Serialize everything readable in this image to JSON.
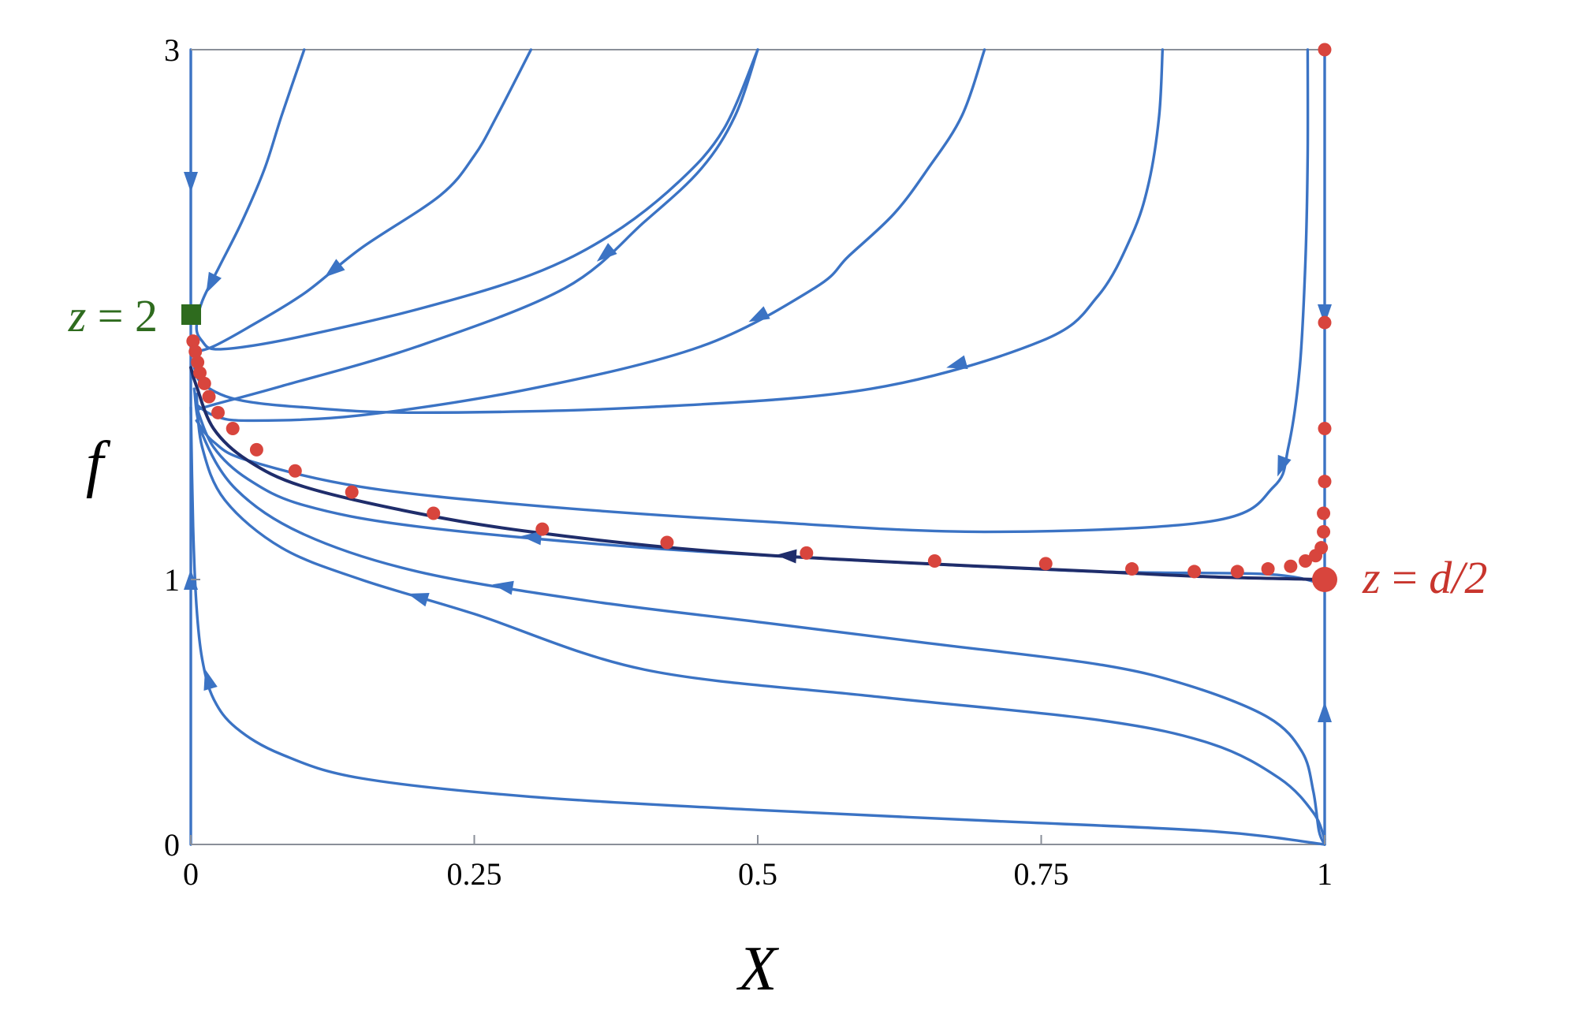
{
  "chart_data": {
    "type": "line",
    "title": "",
    "xlabel": "X",
    "ylabel": "f",
    "xlim": [
      0,
      1
    ],
    "ylim": [
      0,
      3
    ],
    "x_ticks": [
      {
        "value": 0,
        "label": "0"
      },
      {
        "value": 0.25,
        "label": "0.25"
      },
      {
        "value": 0.5,
        "label": "0.5"
      },
      {
        "value": 0.75,
        "label": "0.75"
      },
      {
        "value": 1,
        "label": "1"
      }
    ],
    "y_ticks": [
      {
        "value": 0,
        "label": "0"
      },
      {
        "value": 1,
        "label": "1"
      },
      {
        "value": 3,
        "label": "3"
      }
    ],
    "grid": false,
    "colors": {
      "flow": "#3b73c4",
      "separatrix": "#1f2d6b",
      "points": "#d8453d",
      "square_marker": "#2e6b1e",
      "frame": "#8a8f99"
    },
    "fixed_points": [
      {
        "x": 0,
        "y": 2,
        "marker": "square",
        "label_lhs": "z",
        "label_rhs": "2",
        "color": "#2e6b1e"
      },
      {
        "x": 1,
        "y": 1,
        "marker": "circle",
        "label_lhs": "z",
        "label_rhs": "d/2",
        "color": "#d8453d"
      }
    ],
    "series": [
      {
        "style": "flow",
        "points": [
          [
            0.1,
            3.0
          ],
          [
            0.08,
            2.75
          ],
          [
            0.065,
            2.55
          ],
          [
            0.045,
            2.35
          ],
          [
            0.025,
            2.18
          ],
          [
            0.01,
            2.05
          ],
          [
            0.005,
            1.95
          ],
          [
            0.01,
            1.9
          ],
          [
            0.02,
            1.87
          ],
          [
            0.05,
            1.88
          ],
          [
            0.1,
            1.92
          ],
          [
            0.2,
            2.02
          ],
          [
            0.3,
            2.15
          ],
          [
            0.37,
            2.3
          ],
          [
            0.43,
            2.5
          ],
          [
            0.47,
            2.7
          ],
          [
            0.5,
            3.0
          ]
        ],
        "arrow_at": 4,
        "arrow_dir": "forward"
      },
      {
        "style": "flow",
        "points": [
          [
            0.3,
            3.0
          ],
          [
            0.27,
            2.75
          ],
          [
            0.25,
            2.6
          ],
          [
            0.22,
            2.45
          ],
          [
            0.15,
            2.25
          ],
          [
            0.1,
            2.08
          ],
          [
            0.05,
            1.95
          ],
          [
            0.02,
            1.88
          ],
          [
            0.005,
            1.86
          ]
        ],
        "arrow_at": 4,
        "arrow_dir": "forward"
      },
      {
        "style": "flow",
        "points": [
          [
            0.5,
            3.0
          ],
          [
            0.48,
            2.75
          ],
          [
            0.45,
            2.55
          ],
          [
            0.4,
            2.35
          ],
          [
            0.33,
            2.1
          ],
          [
            0.2,
            1.88
          ],
          [
            0.08,
            1.73
          ],
          [
            0.02,
            1.66
          ],
          [
            0.005,
            1.64
          ]
        ],
        "arrow_at": 3,
        "arrow_dir": "forward"
      },
      {
        "style": "flow",
        "points": [
          [
            0.7,
            3.0
          ],
          [
            0.68,
            2.75
          ],
          [
            0.65,
            2.55
          ],
          [
            0.62,
            2.38
          ],
          [
            0.58,
            2.22
          ],
          [
            0.55,
            2.1
          ],
          [
            0.45,
            1.88
          ],
          [
            0.3,
            1.72
          ],
          [
            0.15,
            1.62
          ],
          [
            0.05,
            1.6
          ],
          [
            0.02,
            1.62
          ],
          [
            0.005,
            1.66
          ]
        ],
        "arrow_at": 5,
        "arrow_dir": "forward"
      },
      {
        "style": "flow",
        "points": [
          [
            0.857,
            3.0
          ],
          [
            0.854,
            2.75
          ],
          [
            0.845,
            2.5
          ],
          [
            0.83,
            2.3
          ],
          [
            0.8,
            2.07
          ],
          [
            0.75,
            1.9
          ],
          [
            0.6,
            1.72
          ],
          [
            0.4,
            1.65
          ],
          [
            0.2,
            1.63
          ],
          [
            0.1,
            1.65
          ],
          [
            0.04,
            1.68
          ],
          [
            0.01,
            1.74
          ],
          [
            0.003,
            1.8
          ]
        ],
        "arrow_at": 5,
        "arrow_dir": "forward"
      },
      {
        "style": "flow",
        "points": [
          [
            0.985,
            3.0
          ],
          [
            0.985,
            2.6
          ],
          [
            0.983,
            2.2
          ],
          [
            0.978,
            1.8
          ],
          [
            0.968,
            1.5
          ],
          [
            0.955,
            1.35
          ],
          [
            0.9,
            1.22
          ],
          [
            0.7,
            1.18
          ],
          [
            0.5,
            1.22
          ],
          [
            0.3,
            1.28
          ],
          [
            0.15,
            1.35
          ],
          [
            0.05,
            1.45
          ],
          [
            0.02,
            1.52
          ],
          [
            0.005,
            1.6
          ]
        ],
        "arrow_at": 4,
        "arrow_dir": "forward"
      },
      {
        "style": "flow",
        "points": [
          [
            1.0,
            0.98
          ],
          [
            0.95,
            1.02
          ],
          [
            0.8,
            1.03
          ],
          [
            0.6,
            1.07
          ],
          [
            0.4,
            1.12
          ],
          [
            0.2,
            1.2
          ],
          [
            0.1,
            1.28
          ],
          [
            0.05,
            1.38
          ],
          [
            0.02,
            1.5
          ],
          [
            0.005,
            1.65
          ]
        ],
        "arrow_at": 4,
        "arrow_dir": "forward"
      },
      {
        "style": "flow",
        "points": [
          [
            1.0,
            0.02
          ],
          [
            0.99,
            0.12
          ],
          [
            0.96,
            0.25
          ],
          [
            0.9,
            0.38
          ],
          [
            0.8,
            0.47
          ],
          [
            0.6,
            0.56
          ],
          [
            0.4,
            0.66
          ],
          [
            0.25,
            0.87
          ],
          [
            0.15,
            1.0
          ],
          [
            0.08,
            1.12
          ],
          [
            0.03,
            1.3
          ],
          [
            0.01,
            1.5
          ],
          [
            0.005,
            1.7
          ]
        ],
        "arrow_at": 7,
        "arrow_dir": "forward"
      },
      {
        "style": "flow",
        "points": [
          [
            1.0,
            0.0
          ],
          [
            0.9,
            0.05
          ],
          [
            0.7,
            0.09
          ],
          [
            0.5,
            0.13
          ],
          [
            0.3,
            0.18
          ],
          [
            0.15,
            0.25
          ],
          [
            0.08,
            0.34
          ],
          [
            0.04,
            0.44
          ],
          [
            0.02,
            0.55
          ],
          [
            0.01,
            0.7
          ],
          [
            0.005,
            0.9
          ],
          [
            0.002,
            1.2
          ],
          [
            0.0,
            1.65
          ]
        ],
        "arrow_at": 8,
        "arrow_dir": "forward"
      },
      {
        "style": "flow",
        "points": [
          [
            1.0,
            0.0
          ],
          [
            0.995,
            0.05
          ],
          [
            0.99,
            0.2
          ],
          [
            0.98,
            0.35
          ],
          [
            0.95,
            0.48
          ],
          [
            0.88,
            0.6
          ],
          [
            0.8,
            0.68
          ],
          [
            0.65,
            0.76
          ],
          [
            0.5,
            0.84
          ],
          [
            0.35,
            0.92
          ],
          [
            0.2,
            1.03
          ],
          [
            0.1,
            1.17
          ],
          [
            0.04,
            1.34
          ],
          [
            0.01,
            1.55
          ],
          [
            0.003,
            1.72
          ]
        ],
        "arrow_at": 9,
        "arrow_dir": "forward"
      },
      {
        "style": "flow",
        "points": [
          [
            0.0,
            3.0
          ],
          [
            0.0,
            2.0
          ]
        ],
        "arrow_at": 0,
        "arrow_dir": "forward"
      },
      {
        "style": "flow",
        "points": [
          [
            0.0,
            0.0
          ],
          [
            0.0,
            2.0
          ]
        ],
        "arrow_at": 0,
        "arrow_dir": "forward"
      },
      {
        "style": "flow",
        "points": [
          [
            1.0,
            3.0
          ],
          [
            1.0,
            1.0
          ]
        ],
        "arrow_at": 0,
        "arrow_dir": "forward"
      },
      {
        "style": "flow",
        "points": [
          [
            1.0,
            0.0
          ],
          [
            1.0,
            1.0
          ]
        ],
        "arrow_at": 0,
        "arrow_dir": "forward"
      },
      {
        "style": "separatrix",
        "points": [
          [
            1.0,
            1.0
          ],
          [
            0.9,
            1.01
          ],
          [
            0.8,
            1.03
          ],
          [
            0.6,
            1.07
          ],
          [
            0.45,
            1.11
          ],
          [
            0.3,
            1.18
          ],
          [
            0.2,
            1.25
          ],
          [
            0.1,
            1.35
          ],
          [
            0.05,
            1.45
          ],
          [
            0.02,
            1.57
          ],
          [
            0.005,
            1.73
          ],
          [
            0.0,
            1.8
          ]
        ],
        "arrow_at": 3,
        "arrow_dir": "forward"
      }
    ],
    "scatter_points": [
      [
        0.002,
        1.9
      ],
      [
        0.004,
        1.86
      ],
      [
        0.006,
        1.82
      ],
      [
        0.008,
        1.78
      ],
      [
        0.012,
        1.74
      ],
      [
        0.016,
        1.69
      ],
      [
        0.024,
        1.63
      ],
      [
        0.037,
        1.57
      ],
      [
        0.058,
        1.49
      ],
      [
        0.092,
        1.41
      ],
      [
        0.142,
        1.33
      ],
      [
        0.214,
        1.25
      ],
      [
        0.31,
        1.19
      ],
      [
        0.42,
        1.14
      ],
      [
        0.543,
        1.1
      ],
      [
        0.656,
        1.07
      ],
      [
        0.754,
        1.06
      ],
      [
        0.83,
        1.04
      ],
      [
        0.885,
        1.03
      ],
      [
        0.923,
        1.03
      ],
      [
        0.95,
        1.04
      ],
      [
        0.97,
        1.05
      ],
      [
        0.983,
        1.07
      ],
      [
        0.992,
        1.09
      ],
      [
        0.997,
        1.12
      ],
      [
        0.999,
        1.18
      ],
      [
        0.999,
        1.25
      ],
      [
        1.0,
        1.37
      ],
      [
        1.0,
        1.57
      ],
      [
        1.0,
        1.97
      ],
      [
        1.0,
        3.0
      ]
    ]
  }
}
